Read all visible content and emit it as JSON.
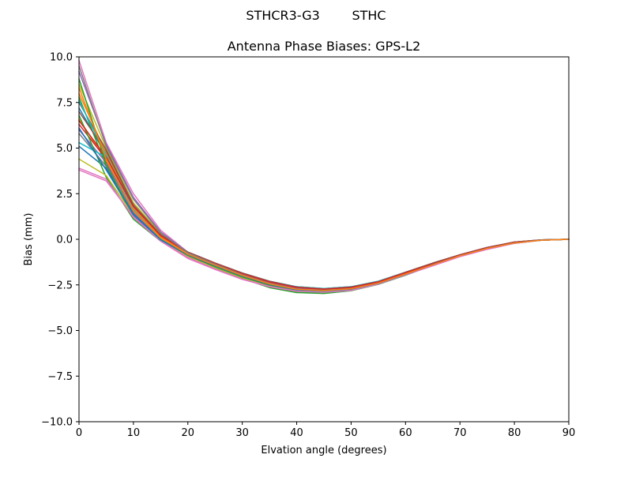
{
  "figure": {
    "suptitle": "STHCR3-G3        STHC"
  },
  "chart_data": {
    "type": "line",
    "title": "Antenna Phase Biases: GPS-L2",
    "xlabel": "Elvation angle (degrees)",
    "ylabel": "Bias (mm)",
    "xlim": [
      0,
      90
    ],
    "ylim": [
      -10,
      10
    ],
    "x_ticks": [
      0,
      10,
      20,
      30,
      40,
      50,
      60,
      70,
      80,
      90
    ],
    "y_ticks": [
      -10.0,
      -7.5,
      -5.0,
      -2.5,
      0.0,
      2.5,
      5.0,
      7.5,
      10.0
    ],
    "x": [
      0,
      5,
      10,
      15,
      20,
      25,
      30,
      35,
      40,
      45,
      50,
      55,
      60,
      65,
      70,
      75,
      80,
      85,
      90
    ],
    "grid": false,
    "legend": "none",
    "series": [
      {
        "color": "#1f77b4",
        "values": [
          7.2,
          4.6,
          1.6,
          0.1,
          -0.8,
          -1.4,
          -2.0,
          -2.4,
          -2.7,
          -2.8,
          -2.7,
          -2.4,
          -1.9,
          -1.4,
          -0.9,
          -0.5,
          -0.2,
          -0.05,
          0.0
        ]
      },
      {
        "color": "#ff7f0e",
        "values": [
          6.6,
          4.3,
          1.5,
          0.05,
          -0.85,
          -1.45,
          -2.0,
          -2.45,
          -2.75,
          -2.8,
          -2.7,
          -2.4,
          -1.9,
          -1.4,
          -0.9,
          -0.5,
          -0.2,
          -0.05,
          0.0
        ]
      },
      {
        "color": "#2ca02c",
        "values": [
          7.8,
          4.0,
          1.2,
          -0.05,
          -0.9,
          -1.55,
          -2.1,
          -2.6,
          -2.9,
          -2.95,
          -2.8,
          -2.45,
          -1.95,
          -1.4,
          -0.9,
          -0.5,
          -0.2,
          -0.05,
          0.0
        ]
      },
      {
        "color": "#d62728",
        "values": [
          6.3,
          4.4,
          1.7,
          0.15,
          -0.75,
          -1.35,
          -1.9,
          -2.35,
          -2.65,
          -2.75,
          -2.65,
          -2.35,
          -1.85,
          -1.35,
          -0.85,
          -0.45,
          -0.15,
          -0.03,
          0.0
        ]
      },
      {
        "color": "#9467bd",
        "values": [
          6.0,
          4.2,
          1.5,
          0.0,
          -0.85,
          -1.45,
          -2.0,
          -2.45,
          -2.75,
          -2.8,
          -2.7,
          -2.4,
          -1.9,
          -1.4,
          -0.9,
          -0.5,
          -0.2,
          -0.05,
          0.0
        ]
      },
      {
        "color": "#8c564b",
        "values": [
          7.0,
          4.8,
          1.8,
          0.2,
          -0.7,
          -1.3,
          -1.85,
          -2.3,
          -2.6,
          -2.7,
          -2.6,
          -2.3,
          -1.8,
          -1.3,
          -0.85,
          -0.45,
          -0.15,
          -0.03,
          0.0
        ]
      },
      {
        "color": "#e377c2",
        "values": [
          9.8,
          5.3,
          2.5,
          0.5,
          -0.7,
          -1.3,
          -1.9,
          -2.4,
          -2.7,
          -2.8,
          -2.7,
          -2.4,
          -1.9,
          -1.4,
          -0.9,
          -0.5,
          -0.2,
          -0.05,
          0.0
        ]
      },
      {
        "color": "#7f7f7f",
        "values": [
          5.8,
          4.0,
          1.4,
          -0.05,
          -0.9,
          -1.5,
          -2.05,
          -2.5,
          -2.8,
          -2.85,
          -2.75,
          -2.42,
          -1.92,
          -1.4,
          -0.9,
          -0.5,
          -0.2,
          -0.05,
          0.0
        ]
      },
      {
        "color": "#bcbd22",
        "values": [
          8.5,
          5.0,
          2.0,
          0.3,
          -0.75,
          -1.35,
          -1.95,
          -2.4,
          -2.7,
          -2.8,
          -2.7,
          -2.4,
          -1.9,
          -1.4,
          -0.9,
          -0.5,
          -0.2,
          -0.05,
          0.0
        ]
      },
      {
        "color": "#17becf",
        "values": [
          5.3,
          4.5,
          1.7,
          0.1,
          -0.7,
          -1.3,
          -1.85,
          -2.3,
          -2.6,
          -2.7,
          -2.6,
          -2.3,
          -1.82,
          -1.32,
          -0.85,
          -0.45,
          -0.15,
          -0.03,
          0.0
        ]
      },
      {
        "color": "#1f77b4",
        "values": [
          5.1,
          3.9,
          1.4,
          0.0,
          -0.8,
          -1.4,
          -1.95,
          -2.4,
          -2.7,
          -2.78,
          -2.68,
          -2.38,
          -1.88,
          -1.38,
          -0.88,
          -0.48,
          -0.18,
          -0.04,
          0.0
        ]
      },
      {
        "color": "#ff7f0e",
        "values": [
          8.0,
          4.7,
          1.7,
          0.15,
          -0.8,
          -1.4,
          -1.95,
          -2.42,
          -2.72,
          -2.8,
          -2.7,
          -2.4,
          -1.9,
          -1.4,
          -0.9,
          -0.5,
          -0.2,
          -0.05,
          0.0
        ]
      },
      {
        "color": "#2ca02c",
        "values": [
          6.8,
          3.4,
          1.1,
          -0.1,
          -0.95,
          -1.6,
          -2.15,
          -2.65,
          -2.92,
          -2.97,
          -2.82,
          -2.47,
          -1.97,
          -1.42,
          -0.92,
          -0.52,
          -0.22,
          -0.05,
          0.0
        ]
      },
      {
        "color": "#9467bd",
        "values": [
          9.2,
          5.2,
          2.3,
          0.4,
          -0.72,
          -1.32,
          -1.92,
          -2.4,
          -2.7,
          -2.8,
          -2.7,
          -2.4,
          -1.9,
          -1.4,
          -0.9,
          -0.5,
          -0.2,
          -0.05,
          0.0
        ]
      },
      {
        "color": "#8c564b",
        "values": [
          7.5,
          4.9,
          1.9,
          0.25,
          -0.7,
          -1.3,
          -1.85,
          -2.3,
          -2.62,
          -2.72,
          -2.62,
          -2.32,
          -1.82,
          -1.32,
          -0.85,
          -0.45,
          -0.15,
          -0.03,
          0.0
        ]
      },
      {
        "color": "#e377c2",
        "values": [
          3.9,
          3.3,
          1.2,
          -0.1,
          -1.05,
          -1.65,
          -2.2,
          -2.6,
          -2.85,
          -2.9,
          -2.8,
          -2.45,
          -1.95,
          -1.45,
          -0.95,
          -0.55,
          -0.22,
          -0.05,
          0.0
        ]
      },
      {
        "color": "#bcbd22",
        "values": [
          4.4,
          3.5,
          1.3,
          -0.05,
          -0.95,
          -1.55,
          -2.1,
          -2.55,
          -2.82,
          -2.88,
          -2.78,
          -2.44,
          -1.94,
          -1.42,
          -0.92,
          -0.52,
          -0.2,
          -0.05,
          0.0
        ]
      },
      {
        "color": "#17becf",
        "values": [
          7.6,
          4.6,
          1.6,
          0.05,
          -0.82,
          -1.42,
          -1.98,
          -2.44,
          -2.74,
          -2.8,
          -2.7,
          -2.4,
          -1.9,
          -1.4,
          -0.9,
          -0.5,
          -0.2,
          -0.05,
          0.0
        ]
      },
      {
        "color": "#d62728",
        "values": [
          6.5,
          4.5,
          1.8,
          0.2,
          -0.72,
          -1.32,
          -1.88,
          -2.34,
          -2.64,
          -2.74,
          -2.64,
          -2.34,
          -1.84,
          -1.34,
          -0.86,
          -0.46,
          -0.16,
          -0.03,
          0.0
        ]
      },
      {
        "color": "#7f7f7f",
        "values": [
          9.5,
          5.1,
          2.2,
          0.35,
          -0.74,
          -1.36,
          -1.94,
          -2.42,
          -2.72,
          -2.82,
          -2.72,
          -2.42,
          -1.92,
          -1.42,
          -0.92,
          -0.52,
          -0.2,
          -0.05,
          0.0
        ]
      },
      {
        "color": "#2ca02c",
        "values": [
          8.8,
          4.1,
          1.3,
          -0.02,
          -0.88,
          -1.5,
          -2.06,
          -2.52,
          -2.84,
          -2.9,
          -2.78,
          -2.44,
          -1.94,
          -1.42,
          -0.92,
          -0.52,
          -0.2,
          -0.05,
          0.0
        ]
      },
      {
        "color": "#e377c2",
        "values": [
          3.8,
          3.2,
          1.25,
          -0.08,
          -1.0,
          -1.62,
          -2.18,
          -2.58,
          -2.84,
          -2.9,
          -2.8,
          -2.45,
          -1.95,
          -1.45,
          -0.95,
          -0.55,
          -0.22,
          -0.05,
          0.0
        ]
      },
      {
        "color": "#1f77b4",
        "values": [
          6.1,
          3.8,
          1.35,
          -0.03,
          -0.86,
          -1.46,
          -2.02,
          -2.47,
          -2.77,
          -2.83,
          -2.73,
          -2.41,
          -1.91,
          -1.39,
          -0.89,
          -0.49,
          -0.19,
          -0.04,
          0.0
        ]
      },
      {
        "color": "#ff7f0e",
        "values": [
          8.3,
          4.4,
          1.55,
          0.08,
          -0.82,
          -1.42,
          -1.98,
          -2.44,
          -2.74,
          -2.81,
          -2.71,
          -2.4,
          -1.9,
          -1.4,
          -0.9,
          -0.5,
          -0.2,
          -0.05,
          0.0
        ]
      }
    ]
  }
}
